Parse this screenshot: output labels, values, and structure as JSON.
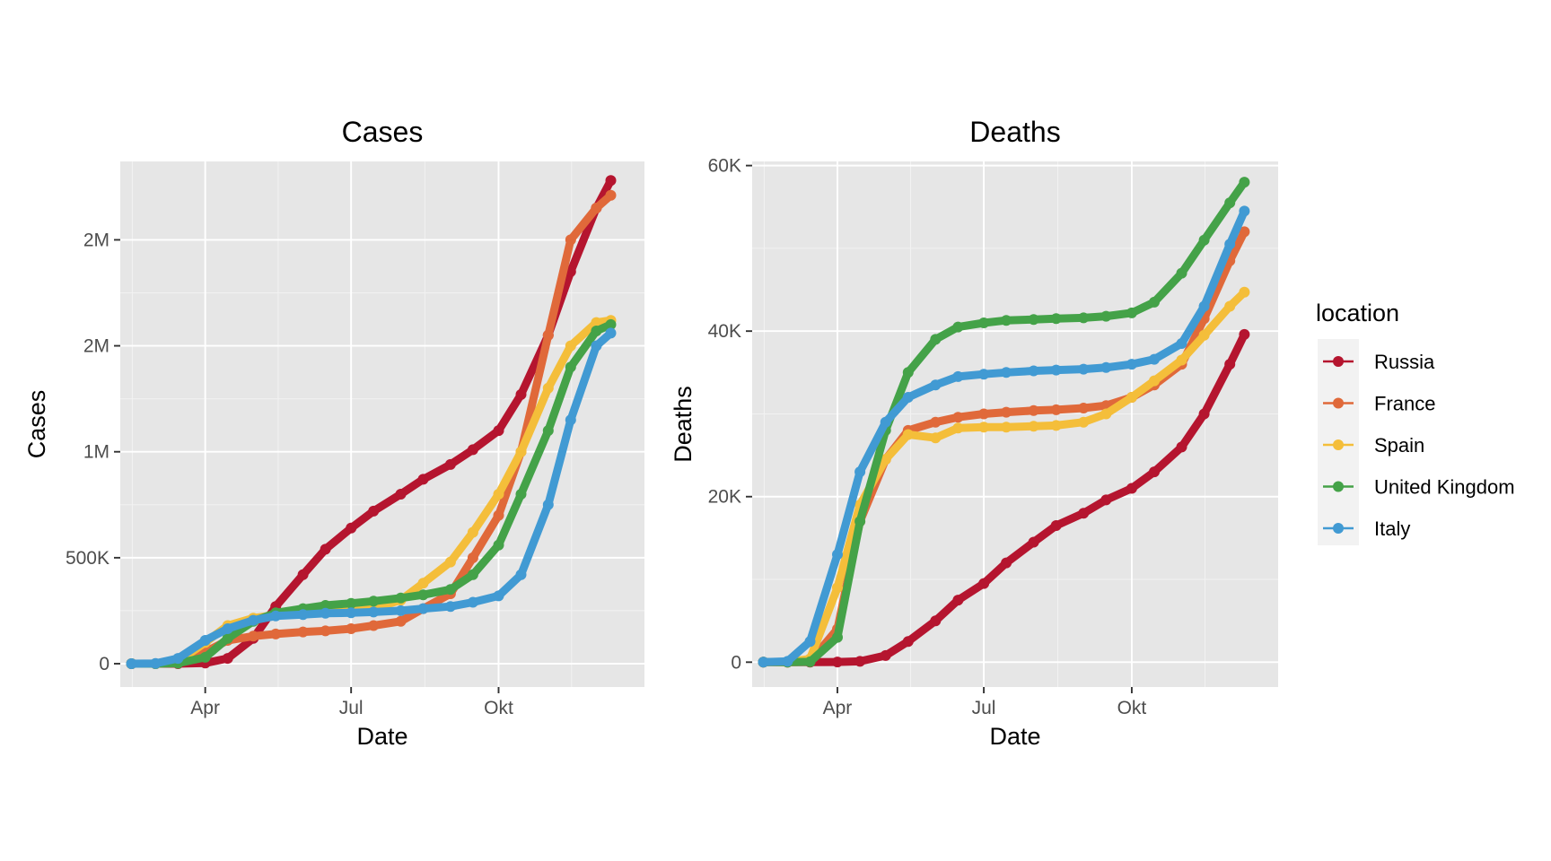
{
  "legend": {
    "title": "location",
    "items": [
      {
        "label": "Russia",
        "color": "#b5152f"
      },
      {
        "label": "France",
        "color": "#e0693a"
      },
      {
        "label": "Spain",
        "color": "#f4be3a"
      },
      {
        "label": "United Kingdom",
        "color": "#44a248"
      },
      {
        "label": "Italy",
        "color": "#419ad3"
      }
    ]
  },
  "chart_data": [
    {
      "type": "line",
      "title": "Cases",
      "xlabel": "Date",
      "ylabel": "Cases",
      "x_ticks": [
        "Apr",
        "Jul",
        "Okt"
      ],
      "x_tick_dates": [
        "2020-04-01",
        "2020-07-01",
        "2020-10-01"
      ],
      "xlim": [
        "2020-02-08",
        "2020-12-31"
      ],
      "y_ticks": [
        {
          "value": 0,
          "label": "0"
        },
        {
          "value": 500000,
          "label": "500K"
        },
        {
          "value": 1000000,
          "label": "1M"
        },
        {
          "value": 1500000,
          "label": "2M"
        },
        {
          "value": 2000000,
          "label": "2M"
        }
      ],
      "ylim": [
        -110000,
        2370000
      ],
      "grid": true,
      "legend_position": "right",
      "x": [
        "2020-02-15",
        "2020-03-01",
        "2020-03-15",
        "2020-04-01",
        "2020-04-15",
        "2020-05-01",
        "2020-05-15",
        "2020-06-01",
        "2020-06-15",
        "2020-07-01",
        "2020-07-15",
        "2020-08-01",
        "2020-08-15",
        "2020-09-01",
        "2020-09-15",
        "2020-10-01",
        "2020-10-15",
        "2020-11-01",
        "2020-11-15",
        "2020-12-01",
        "2020-12-10"
      ],
      "series": [
        {
          "name": "Russia",
          "values": [
            0,
            0,
            200,
            3000,
            25000,
            120000,
            270000,
            420000,
            540000,
            640000,
            720000,
            800000,
            870000,
            940000,
            1010000,
            1100000,
            1270000,
            1550000,
            1850000,
            2150000,
            2280000
          ]
        },
        {
          "name": "France",
          "values": [
            0,
            100,
            5000,
            55000,
            110000,
            130000,
            140000,
            150000,
            155000,
            165000,
            180000,
            200000,
            260000,
            330000,
            500000,
            700000,
            1000000,
            1550000,
            2000000,
            2150000,
            2210000
          ]
        },
        {
          "name": "Spain",
          "values": [
            0,
            100,
            10000,
            100000,
            180000,
            215000,
            230000,
            240000,
            245000,
            250000,
            260000,
            300000,
            380000,
            480000,
            620000,
            800000,
            1000000,
            1300000,
            1500000,
            1610000,
            1620000
          ]
        },
        {
          "name": "United Kingdom",
          "values": [
            0,
            100,
            2000,
            30000,
            120000,
            200000,
            240000,
            260000,
            275000,
            285000,
            295000,
            310000,
            325000,
            350000,
            420000,
            560000,
            800000,
            1100000,
            1400000,
            1570000,
            1600000
          ]
        },
        {
          "name": "Italy",
          "values": [
            0,
            1500,
            25000,
            110000,
            165000,
            205000,
            225000,
            232000,
            238000,
            240000,
            244000,
            250000,
            260000,
            270000,
            290000,
            320000,
            420000,
            750000,
            1150000,
            1500000,
            1560000
          ]
        }
      ]
    },
    {
      "type": "line",
      "title": "Deaths",
      "xlabel": "Date",
      "ylabel": "Deaths",
      "x_ticks": [
        "Apr",
        "Jul",
        "Okt"
      ],
      "x_tick_dates": [
        "2020-04-01",
        "2020-07-01",
        "2020-10-01"
      ],
      "xlim": [
        "2020-02-08",
        "2020-12-31"
      ],
      "y_ticks": [
        {
          "value": 0,
          "label": "0"
        },
        {
          "value": 20000,
          "label": "20K"
        },
        {
          "value": 40000,
          "label": "40K"
        },
        {
          "value": 60000,
          "label": "60K"
        }
      ],
      "ylim": [
        -3000,
        60500
      ],
      "grid": true,
      "legend_position": "right",
      "x": [
        "2020-02-15",
        "2020-03-01",
        "2020-03-15",
        "2020-04-01",
        "2020-04-15",
        "2020-05-01",
        "2020-05-15",
        "2020-06-01",
        "2020-06-15",
        "2020-07-01",
        "2020-07-15",
        "2020-08-01",
        "2020-08-15",
        "2020-09-01",
        "2020-09-15",
        "2020-10-01",
        "2020-10-15",
        "2020-11-01",
        "2020-11-15",
        "2020-12-01",
        "2020-12-10"
      ],
      "series": [
        {
          "name": "Russia",
          "values": [
            0,
            0,
            0,
            20,
            100,
            800,
            2500,
            5000,
            7500,
            9500,
            12000,
            14500,
            16500,
            18000,
            19600,
            21000,
            23000,
            26000,
            30000,
            36000,
            39600
          ]
        },
        {
          "name": "France",
          "values": [
            0,
            0,
            80,
            4000,
            17000,
            24500,
            28000,
            29000,
            29600,
            30000,
            30200,
            30400,
            30500,
            30700,
            31000,
            32000,
            33500,
            36000,
            41500,
            48500,
            52000
          ]
        },
        {
          "name": "Spain",
          "values": [
            0,
            0,
            400,
            9000,
            19000,
            24500,
            27500,
            27100,
            28300,
            28400,
            28400,
            28500,
            28600,
            29000,
            30000,
            32000,
            34000,
            36500,
            39500,
            43000,
            44700
          ]
        },
        {
          "name": "United Kingdom",
          "values": [
            0,
            0,
            50,
            3000,
            17000,
            28000,
            35000,
            39000,
            40500,
            41000,
            41300,
            41400,
            41500,
            41600,
            41800,
            42200,
            43500,
            47000,
            51000,
            55500,
            58000
          ]
        },
        {
          "name": "Italy",
          "values": [
            0,
            100,
            2500,
            13000,
            23000,
            29000,
            32000,
            33500,
            34500,
            34800,
            35000,
            35200,
            35300,
            35400,
            35600,
            36000,
            36600,
            38500,
            43000,
            50500,
            54500
          ]
        }
      ]
    }
  ]
}
